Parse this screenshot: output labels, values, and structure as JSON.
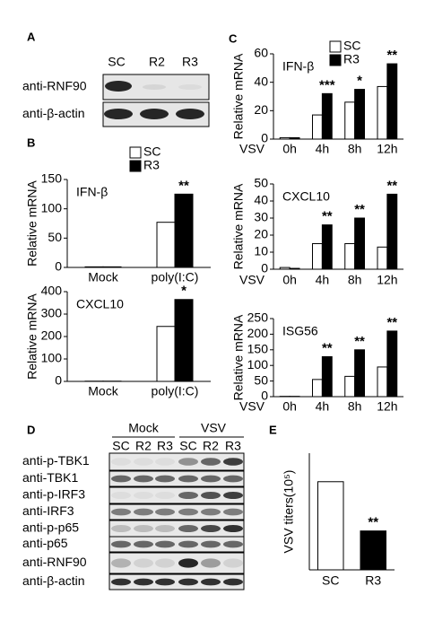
{
  "panels": [
    "A",
    "B",
    "C",
    "D",
    "E"
  ],
  "blot_a": {
    "lanes": [
      "SC",
      "R2",
      "R3"
    ],
    "rows": [
      "anti-RNF90",
      "anti-β-actin"
    ]
  },
  "blot_d": {
    "groups": [
      "Mock",
      "VSV"
    ],
    "lanes": [
      "SC",
      "R2",
      "R3",
      "SC",
      "R2",
      "R3"
    ],
    "rows": [
      "anti-p-TBK1",
      "anti-TBK1",
      "anti-p-IRF3",
      "anti-IRF3",
      "anti-p-p65",
      "anti-p65",
      "anti-RNF90",
      "anti-β-actin"
    ]
  },
  "chart_data": [
    {
      "type": "bar",
      "title": "IFN-β",
      "ylabel": "Relative mRNA",
      "categories": [
        "Mock",
        "poly(I:C)"
      ],
      "series": [
        {
          "name": "SC",
          "color": "#ffffff",
          "values": [
            1,
            77
          ]
        },
        {
          "name": "R3",
          "color": "#000000",
          "values": [
            1,
            125
          ]
        }
      ],
      "annotations": [
        null,
        "**"
      ],
      "ylim": [
        0,
        150
      ],
      "yticks": [
        0,
        50,
        100,
        150
      ],
      "legend": true
    },
    {
      "type": "bar",
      "title": "CXCL10",
      "ylabel": "Relative mRNA",
      "categories": [
        "Mock",
        "poly(I:C)"
      ],
      "series": [
        {
          "color": "#ffffff",
          "values": [
            1,
            245
          ]
        },
        {
          "color": "#000000",
          "values": [
            1,
            365
          ]
        }
      ],
      "annotations": [
        null,
        "*"
      ],
      "ylim": [
        0,
        400
      ],
      "yticks": [
        0,
        100,
        200,
        300,
        400
      ]
    },
    {
      "type": "bar",
      "title": "IFN-β",
      "ylabel": "Relative mRNA",
      "xlabel": "VSV",
      "categories": [
        "0h",
        "4h",
        "8h",
        "12h"
      ],
      "series": [
        {
          "name": "SC",
          "color": "#ffffff",
          "values": [
            1,
            17,
            26,
            37
          ]
        },
        {
          "name": "R3",
          "color": "#000000",
          "values": [
            1,
            32,
            35,
            53
          ]
        }
      ],
      "annotations": [
        null,
        "***",
        "*",
        "**"
      ],
      "ylim": [
        0,
        60
      ],
      "yticks": [
        0,
        20,
        40,
        60
      ],
      "legend": true
    },
    {
      "type": "bar",
      "title": "CXCL10",
      "ylabel": "Relative mRNA",
      "xlabel": "VSV",
      "categories": [
        "0h",
        "4h",
        "8h",
        "12h"
      ],
      "series": [
        {
          "color": "#ffffff",
          "values": [
            1,
            15,
            15,
            13
          ]
        },
        {
          "color": "#000000",
          "values": [
            0.5,
            26,
            30,
            44
          ]
        }
      ],
      "annotations": [
        null,
        "**",
        "**",
        "**"
      ],
      "ylim": [
        0,
        50
      ],
      "yticks": [
        0,
        10,
        20,
        30,
        40,
        50
      ]
    },
    {
      "type": "bar",
      "title": "ISG56",
      "ylabel": "Relative mRNA",
      "xlabel": "VSV",
      "categories": [
        "0h",
        "4h",
        "8h",
        "12h"
      ],
      "series": [
        {
          "color": "#ffffff",
          "values": [
            1,
            55,
            65,
            95
          ]
        },
        {
          "color": "#000000",
          "values": [
            1,
            128,
            150,
            210
          ]
        }
      ],
      "annotations": [
        null,
        "**",
        "**",
        "**"
      ],
      "ylim": [
        0,
        250
      ],
      "yticks": [
        0,
        50,
        100,
        150,
        200,
        250
      ]
    },
    {
      "type": "bar",
      "ylabel": "VSV titers(10⁵)",
      "categories": [
        "SC",
        "R3"
      ],
      "values": [
        34,
        15
      ],
      "colors": [
        "#ffffff",
        "#000000"
      ],
      "annotations": [
        null,
        "**"
      ],
      "ylim": [
        0,
        45
      ]
    }
  ]
}
